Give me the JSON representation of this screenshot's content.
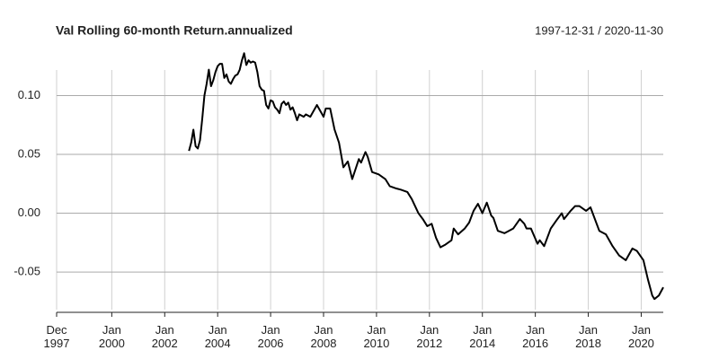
{
  "chart_data": {
    "type": "line",
    "title": "Val Rolling 60-month Return.annualized",
    "subtitle": "1997-12-31 / 2020-11-30",
    "color": "#000000",
    "x": [
      "2002-12",
      "2003-01",
      "2003-02",
      "2003-03",
      "2003-04",
      "2003-05",
      "2003-06",
      "2003-07",
      "2003-08",
      "2003-09",
      "2003-10",
      "2003-11",
      "2003-12",
      "2004-01",
      "2004-02",
      "2004-03",
      "2004-04",
      "2004-05",
      "2004-06",
      "2004-07",
      "2004-08",
      "2004-09",
      "2004-10",
      "2004-11",
      "2004-12",
      "2005-01",
      "2005-02",
      "2005-03",
      "2005-04",
      "2005-05",
      "2005-06",
      "2005-07",
      "2005-08",
      "2005-09",
      "2005-10",
      "2005-11",
      "2005-12",
      "2006-01",
      "2006-02",
      "2006-03",
      "2006-04",
      "2006-05",
      "2006-06",
      "2006-07",
      "2006-08",
      "2006-09",
      "2006-10",
      "2006-11",
      "2006-12",
      "2007-01",
      "2007-02",
      "2007-03",
      "2007-04",
      "2007-05",
      "2007-07",
      "2007-10",
      "2008-01",
      "2008-02",
      "2008-04",
      "2008-06",
      "2008-08",
      "2008-10",
      "2008-12",
      "2009-02",
      "2009-05",
      "2009-06",
      "2009-08",
      "2009-09",
      "2009-11",
      "2010-02",
      "2010-05",
      "2010-07",
      "2010-10",
      "2010-12",
      "2011-03",
      "2011-05",
      "2011-08",
      "2011-10",
      "2011-12",
      "2012-02",
      "2012-04",
      "2012-06",
      "2012-08",
      "2012-11",
      "2012-12",
      "2013-02",
      "2013-05",
      "2013-07",
      "2013-09",
      "2013-11",
      "2014-01",
      "2014-03",
      "2014-05",
      "2014-06",
      "2014-08",
      "2014-11",
      "2015-01",
      "2015-03",
      "2015-06",
      "2015-08",
      "2015-09",
      "2015-11",
      "2016-02",
      "2016-03",
      "2016-05",
      "2016-08",
      "2016-11",
      "2017-01",
      "2017-02",
      "2017-05",
      "2017-07",
      "2017-09",
      "2017-12",
      "2018-02",
      "2018-04",
      "2018-06",
      "2018-09",
      "2018-12",
      "2019-03",
      "2019-06",
      "2019-09",
      "2019-11",
      "2020-02",
      "2020-04",
      "2020-06",
      "2020-07",
      "2020-09",
      "2020-11"
    ],
    "values": [
      0.053,
      0.06,
      0.071,
      0.057,
      0.055,
      0.062,
      0.08,
      0.1,
      0.11,
      0.122,
      0.108,
      0.113,
      0.12,
      0.125,
      0.127,
      0.127,
      0.115,
      0.118,
      0.112,
      0.11,
      0.114,
      0.117,
      0.118,
      0.122,
      0.13,
      0.136,
      0.126,
      0.13,
      0.128,
      0.129,
      0.128,
      0.12,
      0.108,
      0.105,
      0.104,
      0.092,
      0.089,
      0.096,
      0.095,
      0.09,
      0.088,
      0.085,
      0.093,
      0.095,
      0.092,
      0.094,
      0.088,
      0.09,
      0.085,
      0.079,
      0.084,
      0.083,
      0.082,
      0.084,
      0.082,
      0.092,
      0.082,
      0.089,
      0.089,
      0.071,
      0.06,
      0.039,
      0.044,
      0.029,
      0.046,
      0.043,
      0.052,
      0.048,
      0.035,
      0.033,
      0.029,
      0.023,
      0.021,
      0.02,
      0.018,
      0.012,
      0.0,
      -0.005,
      -0.011,
      -0.009,
      -0.021,
      -0.029,
      -0.027,
      -0.023,
      -0.013,
      -0.018,
      -0.013,
      -0.008,
      0.002,
      0.008,
      0.0,
      0.009,
      -0.002,
      -0.004,
      -0.015,
      -0.017,
      -0.015,
      -0.013,
      -0.005,
      -0.009,
      -0.013,
      -0.013,
      -0.026,
      -0.023,
      -0.028,
      -0.013,
      -0.005,
      0.0,
      -0.005,
      0.002,
      0.006,
      0.006,
      0.002,
      0.005,
      -0.005,
      -0.015,
      -0.018,
      -0.028,
      -0.036,
      -0.04,
      -0.03,
      -0.032,
      -0.04,
      -0.056,
      -0.07,
      -0.073,
      -0.07,
      -0.063
    ],
    "xlim": [
      "1997-12",
      "2020-11"
    ],
    "xticks": [
      {
        "value": "1997-12",
        "label": "Dec\n1997"
      },
      {
        "value": "2000-01",
        "label": "Jan\n2000"
      },
      {
        "value": "2002-01",
        "label": "Jan\n2002"
      },
      {
        "value": "2004-01",
        "label": "Jan\n2004"
      },
      {
        "value": "2006-01",
        "label": "Jan\n2006"
      },
      {
        "value": "2008-01",
        "label": "Jan\n2008"
      },
      {
        "value": "2010-01",
        "label": "Jan\n2010"
      },
      {
        "value": "2012-01",
        "label": "Jan\n2012"
      },
      {
        "value": "2014-01",
        "label": "Jan\n2014"
      },
      {
        "value": "2016-01",
        "label": "Jan\n2016"
      },
      {
        "value": "2018-01",
        "label": "Jan\n2018"
      },
      {
        "value": "2020-01",
        "label": "Jan\n2020"
      }
    ],
    "ylim": [
      -0.082,
      0.137
    ],
    "yticks": [
      {
        "value": 0.1,
        "label": "0.10"
      },
      0.05,
      {
        "value": 0,
        "label": "0.00"
      },
      -0.05
    ],
    "grid": true
  }
}
